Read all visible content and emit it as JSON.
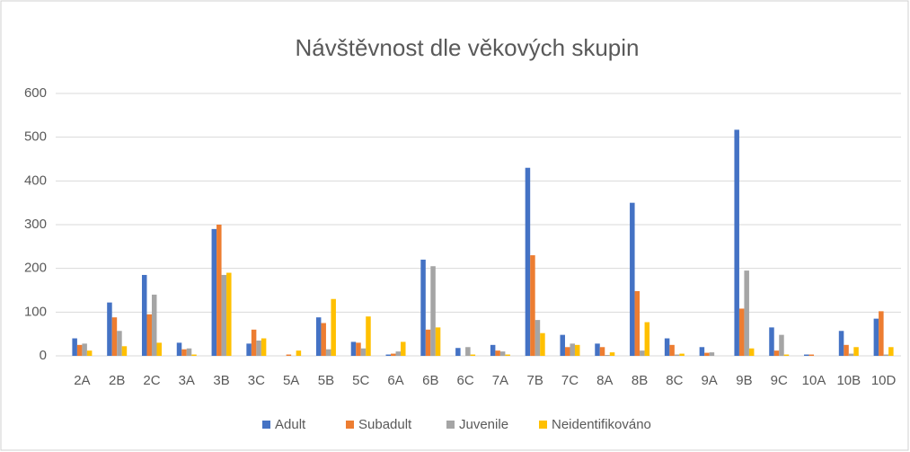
{
  "chart_data": {
    "type": "bar",
    "title": "Návštěvnost dle věkových skupin",
    "categories": [
      "2A",
      "2B",
      "2C",
      "3A",
      "3B",
      "3C",
      "5A",
      "5B",
      "5C",
      "6A",
      "6B",
      "6C",
      "7A",
      "7B",
      "7C",
      "8A",
      "8B",
      "8C",
      "9A",
      "9B",
      "9C",
      "10A",
      "10B",
      "10D"
    ],
    "series": [
      {
        "name": "Adult",
        "color": "#4472c4",
        "values": [
          40,
          122,
          185,
          30,
          290,
          28,
          0,
          88,
          32,
          3,
          220,
          18,
          25,
          430,
          48,
          28,
          350,
          40,
          20,
          517,
          65,
          3,
          57,
          85
        ]
      },
      {
        "name": "Subadult",
        "color": "#ed7d31",
        "values": [
          25,
          88,
          95,
          15,
          300,
          60,
          3,
          75,
          30,
          5,
          60,
          0,
          12,
          230,
          20,
          20,
          148,
          25,
          7,
          108,
          12,
          3,
          25,
          102
        ]
      },
      {
        "name": "Juvenile",
        "color": "#a5a5a5",
        "values": [
          28,
          57,
          140,
          17,
          185,
          35,
          0,
          15,
          17,
          10,
          205,
          20,
          10,
          82,
          28,
          2,
          12,
          3,
          8,
          195,
          48,
          0,
          5,
          3
        ]
      },
      {
        "name": "Neidentifikováno",
        "color": "#ffc000",
        "values": [
          12,
          22,
          30,
          3,
          190,
          40,
          12,
          130,
          90,
          32,
          65,
          3,
          3,
          52,
          25,
          8,
          77,
          5,
          0,
          17,
          3,
          0,
          20,
          20
        ]
      }
    ],
    "ylim": [
      0,
      600
    ],
    "yticks": [
      0,
      100,
      200,
      300,
      400,
      500,
      600
    ],
    "grid": true,
    "legend": "bottom"
  }
}
